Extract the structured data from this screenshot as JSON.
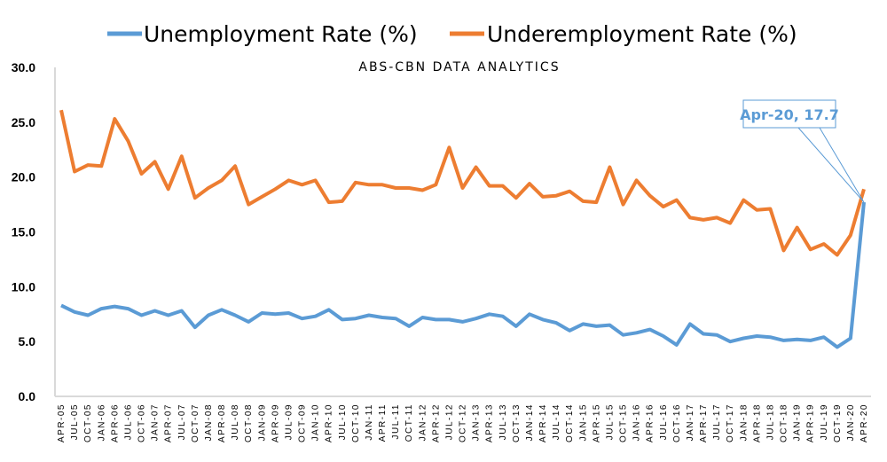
{
  "chart_data": {
    "type": "line",
    "title": "ABS-CBN DATA ANALYTICS",
    "xlabel": "",
    "ylabel": "",
    "ylim": [
      0,
      30
    ],
    "yticks": [
      "0.0",
      "5.0",
      "10.0",
      "15.0",
      "20.0",
      "25.0",
      "30.0"
    ],
    "grid": false,
    "legend_position": "top",
    "x": [
      "APR-05",
      "JUL-05",
      "OCT-05",
      "JAN-06",
      "APR-06",
      "JUL-06",
      "OCT-06",
      "JAN-07",
      "APR-07",
      "JUL-07",
      "OCT-07",
      "JAN-08",
      "APR-08",
      "JUL-08",
      "OCT-08",
      "JAN-09",
      "APR-09",
      "JUL-09",
      "OCT-09",
      "JAN-10",
      "APR-10",
      "JUL-10",
      "OCT-10",
      "JAN-11",
      "APR-11",
      "JUL-11",
      "OCT-11",
      "JAN-12",
      "APR-12",
      "JUL-12",
      "OCT-12",
      "JAN-13",
      "APR-13",
      "JUL-13",
      "OCT-13",
      "JAN-14",
      "APR-14",
      "JUL-14",
      "OCT-14",
      "JAN-15",
      "APR-15",
      "JUL-15",
      "OCT-15",
      "JAN-16",
      "APR-16",
      "JUL-16",
      "OCT-16",
      "JAN-17",
      "APR-17",
      "JUL-17",
      "OCT-17",
      "JAN-18",
      "APR-18",
      "JUL-18",
      "OCT-18",
      "JAN-19",
      "APR-19",
      "JUL-19",
      "OCT-19",
      "JAN-20",
      "APR-20"
    ],
    "series": [
      {
        "name": "Unemployment Rate (%)",
        "color": "#5b9bd5",
        "values": [
          8.3,
          7.7,
          7.4,
          8.0,
          8.2,
          8.0,
          7.4,
          7.8,
          7.4,
          7.8,
          6.3,
          7.4,
          7.9,
          7.4,
          6.8,
          7.6,
          7.5,
          7.6,
          7.1,
          7.3,
          7.9,
          7.0,
          7.1,
          7.4,
          7.2,
          7.1,
          6.4,
          7.2,
          7.0,
          7.0,
          6.8,
          7.1,
          7.5,
          7.3,
          6.4,
          7.5,
          7.0,
          6.7,
          6.0,
          6.6,
          6.4,
          6.5,
          5.6,
          5.8,
          6.1,
          5.5,
          4.7,
          6.6,
          5.7,
          5.6,
          5.0,
          5.3,
          5.5,
          5.4,
          5.1,
          5.2,
          5.1,
          5.4,
          4.5,
          5.3,
          17.7
        ]
      },
      {
        "name": "Underemployment Rate (%)",
        "color": "#ed7d31",
        "values": [
          26.1,
          20.5,
          21.1,
          21.0,
          25.3,
          23.3,
          20.3,
          21.4,
          18.9,
          21.9,
          18.1,
          19.0,
          19.7,
          21.0,
          17.5,
          18.2,
          18.9,
          19.7,
          19.3,
          19.7,
          17.7,
          17.8,
          19.5,
          19.3,
          19.3,
          19.0,
          19.0,
          18.8,
          19.3,
          22.7,
          19.0,
          20.9,
          19.2,
          19.2,
          18.1,
          19.4,
          18.2,
          18.3,
          18.7,
          17.8,
          17.7,
          20.9,
          17.5,
          19.7,
          18.3,
          17.3,
          17.9,
          16.3,
          16.1,
          16.3,
          15.8,
          17.9,
          17.0,
          17.1,
          13.3,
          15.4,
          13.4,
          13.9,
          12.9,
          14.7,
          18.9
        ]
      }
    ],
    "annotations": [
      {
        "text": "Apr-20, 17.7",
        "series": "Unemployment Rate (%)",
        "x": "APR-20",
        "y": 17.7
      }
    ]
  },
  "legend": {
    "items": [
      {
        "label": "Unemployment Rate (%)",
        "color": "#5b9bd5"
      },
      {
        "label": "Underemployment Rate (%)",
        "color": "#ed7d31"
      }
    ]
  },
  "callout": {
    "text": "Apr-20, 17.7"
  }
}
